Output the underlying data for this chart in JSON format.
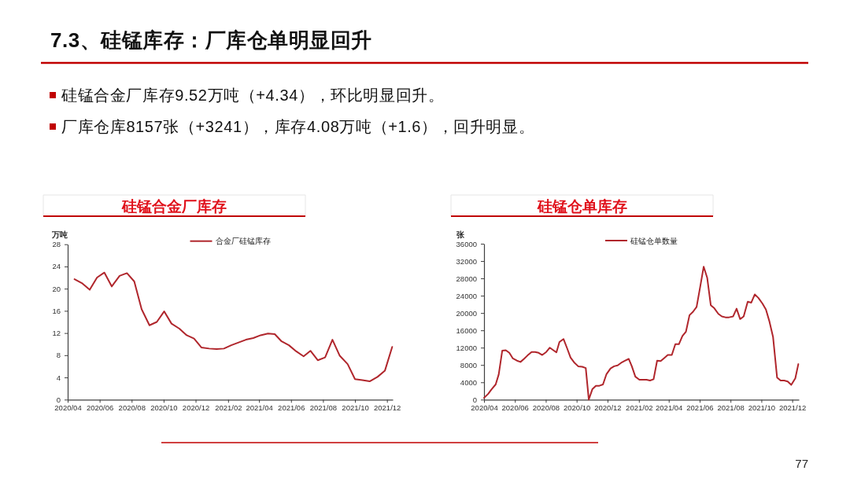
{
  "chart_data": [
    {
      "type": "other",
      "title": "7.3、硅锰库存：厂库仓单明显回升",
      "annotations": [
        "硅锰合金厂库存9.52万吨（+4.34），环比明显回升。",
        "厂库仓库8157张（+3241），库存4.08万吨（+1.6），回升明显。"
      ]
    },
    {
      "type": "line",
      "title": "硅锰合金厂库存",
      "ylabel": "万吨",
      "legend": "top",
      "x": [
        "2020-04-14",
        "2020-04-28",
        "2020-05-13",
        "2020-05-27",
        "2020-06-10",
        "2020-06-24",
        "2020-07-09",
        "2020-07-23",
        "2020-08-06",
        "2020-08-20",
        "2020-09-04",
        "2020-09-18",
        "2020-10-02",
        "2020-10-16",
        "2020-10-31",
        "2020-11-14",
        "2020-11-28",
        "2020-12-12",
        "2020-12-27",
        "2021-01-10",
        "2021-01-24",
        "2021-02-07",
        "2021-02-21",
        "2021-03-07",
        "2021-03-21",
        "2021-04-04",
        "2021-04-18",
        "2021-05-01",
        "2021-05-14",
        "2021-05-28",
        "2021-06-11",
        "2021-06-25",
        "2021-07-08",
        "2021-07-22",
        "2021-08-05",
        "2021-08-19",
        "2021-09-02",
        "2021-09-17",
        "2021-10-01",
        "2021-10-15",
        "2021-10-29",
        "2021-11-13",
        "2021-11-27",
        "2021-12-11"
      ],
      "series": [
        {
          "name": "合金厂硅锰库存",
          "color": "#b0262c",
          "values": [
            21.7,
            21.0,
            19.8,
            22.0,
            22.9,
            20.4,
            22.3,
            22.8,
            21.3,
            16.3,
            13.4,
            14.0,
            15.9,
            13.7,
            12.8,
            11.6,
            11.0,
            9.4,
            9.2,
            9.1,
            9.2,
            9.8,
            10.3,
            10.8,
            11.1,
            11.6,
            11.9,
            11.8,
            10.5,
            9.8,
            8.7,
            7.8,
            8.8,
            7.1,
            7.6,
            10.8,
            7.9,
            6.4,
            3.7,
            3.5,
            3.3,
            4.1,
            5.2,
            9.5
          ]
        }
      ],
      "xlim": [
        "2020-04-01",
        "2021-12-12"
      ],
      "xticks": [
        {
          "value": "2020-04",
          "label": "2020/04"
        },
        {
          "value": "2020-06",
          "label": "2020/06"
        },
        {
          "value": "2020-08",
          "label": "2020/08"
        },
        {
          "value": "2020-10",
          "label": "2020/10"
        },
        {
          "value": "2020-12",
          "label": "2020/12"
        },
        {
          "value": "2021-02",
          "label": "2021/02"
        },
        {
          "value": "2021-04",
          "label": "2021/04"
        },
        {
          "value": "2021-06",
          "label": "2021/06"
        },
        {
          "value": "2021-08",
          "label": "2021/08"
        },
        {
          "value": "2021-10",
          "label": "2021/10"
        },
        {
          "value": "2021-12",
          "label": "2021/12"
        }
      ],
      "ylim": [
        0,
        28
      ],
      "yticks": [
        0,
        4,
        8,
        12,
        16,
        20,
        24,
        28
      ]
    },
    {
      "type": "line",
      "title": "硅锰仓单库存",
      "ylabel": "张",
      "legend": "top",
      "annotations": [
        "77"
      ],
      "x": [
        "2020-04-01",
        "2020-04-09",
        "2020-04-16",
        "2020-04-24",
        "2020-04-30",
        "2020-05-07",
        "2020-05-14",
        "2020-05-21",
        "2020-05-28",
        "2020-06-05",
        "2020-06-12",
        "2020-06-19",
        "2020-06-26",
        "2020-07-04",
        "2020-07-11",
        "2020-07-18",
        "2020-07-25",
        "2020-08-02",
        "2020-08-09",
        "2020-08-16",
        "2020-08-22",
        "2020-08-28",
        "2020-09-05",
        "2020-09-12",
        "2020-09-19",
        "2020-09-26",
        "2020-10-04",
        "2020-10-12",
        "2020-10-19",
        "2020-10-25",
        "2020-11-01",
        "2020-11-08",
        "2020-11-15",
        "2020-11-22",
        "2020-11-29",
        "2020-12-07",
        "2020-12-14",
        "2020-12-21",
        "2020-12-28",
        "2021-01-05",
        "2021-01-12",
        "2021-01-18",
        "2021-01-25",
        "2021-02-02",
        "2021-02-09",
        "2021-02-16",
        "2021-02-23",
        "2021-03-02",
        "2021-03-09",
        "2021-03-16",
        "2021-03-23",
        "2021-03-30",
        "2021-04-07",
        "2021-04-14",
        "2021-04-21",
        "2021-04-28",
        "2021-05-05",
        "2021-05-12",
        "2021-05-19",
        "2021-05-26",
        "2021-06-02",
        "2021-06-09",
        "2021-06-16",
        "2021-06-23",
        "2021-06-30",
        "2021-07-08",
        "2021-07-15",
        "2021-07-22",
        "2021-07-29",
        "2021-08-06",
        "2021-08-13",
        "2021-08-20",
        "2021-08-27",
        "2021-09-04",
        "2021-09-11",
        "2021-09-18",
        "2021-09-25",
        "2021-10-03",
        "2021-10-10",
        "2021-10-17",
        "2021-10-24",
        "2021-11-01",
        "2021-11-08",
        "2021-11-15",
        "2021-11-22",
        "2021-11-29",
        "2021-12-07",
        "2021-12-13"
      ],
      "series": [
        {
          "name": "硅锰仓单数量",
          "color": "#b0262c",
          "values": [
            400,
            1300,
            2400,
            3500,
            5800,
            11300,
            11400,
            10800,
            9500,
            9000,
            8700,
            9400,
            10200,
            11000,
            11000,
            10800,
            10300,
            11000,
            12000,
            11400,
            10900,
            13300,
            14000,
            11900,
            9700,
            8600,
            7700,
            7600,
            7300,
            0,
            2400,
            3200,
            3200,
            3500,
            5900,
            7200,
            7700,
            7900,
            8500,
            9000,
            9400,
            7700,
            5300,
            4600,
            4600,
            4600,
            4400,
            4700,
            9000,
            8900,
            9600,
            10300,
            10300,
            12800,
            12800,
            14700,
            15700,
            19500,
            20300,
            21400,
            26000,
            30700,
            28100,
            21800,
            21100,
            19800,
            19200,
            19000,
            19000,
            19200,
            21000,
            18600,
            19200,
            22600,
            22400,
            24300,
            23500,
            22200,
            20800,
            18000,
            14500,
            5100,
            4400,
            4400,
            4200,
            3400,
            4900,
            8200
          ]
        }
      ],
      "xlim": [
        "2020-04-01",
        "2021-12-14"
      ],
      "xticks": [
        {
          "value": "2020-04",
          "label": "2020/04"
        },
        {
          "value": "2020-06",
          "label": "2020/06"
        },
        {
          "value": "2020-08",
          "label": "2020/08"
        },
        {
          "value": "2020-10",
          "label": "2020/10"
        },
        {
          "value": "2020-12",
          "label": "2020/12"
        },
        {
          "value": "2021-02",
          "label": "2021/02"
        },
        {
          "value": "2021-04",
          "label": "2021/04"
        },
        {
          "value": "2021-06",
          "label": "2021/06"
        },
        {
          "value": "2021-08",
          "label": "2021/08"
        },
        {
          "value": "2021-10",
          "label": "2021/10"
        },
        {
          "value": "2021-12",
          "label": "2021/12"
        }
      ],
      "ylim": [
        0,
        36000
      ],
      "yticks": [
        0,
        4000,
        8000,
        12000,
        16000,
        20000,
        24000,
        28000,
        32000,
        36000
      ]
    }
  ]
}
